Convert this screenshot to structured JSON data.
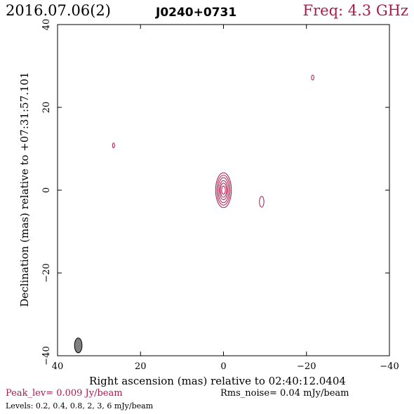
{
  "header": {
    "date": "2016.07.06(2)",
    "source": "J0240+0731",
    "frequency": "Freq: 4.3 GHz"
  },
  "footer": {
    "peak": "Peak_lev=  0.009 Jy/beam",
    "rms": "Rms_noise= 0.04 mJy/beam",
    "levels": "Levels: 0.2, 0.4, 0.8,    2,    3,    6 mJy/beam"
  },
  "colors": {
    "contour": "#b0184a",
    "beam": "#808080",
    "axis": "#000000"
  },
  "chart_data": {
    "type": "contour",
    "xlabel": "Right ascension (mas) relative to 02:40:12.0404",
    "ylabel": "Declination (mas) relative to +07:31:57.101",
    "xlim": [
      40,
      -40
    ],
    "ylim": [
      -40,
      40
    ],
    "x_ticks": [
      40,
      20,
      0,
      -20,
      -40
    ],
    "y_ticks": [
      -40,
      -20,
      0,
      20,
      40
    ],
    "x_tick_labels": [
      "40",
      "20",
      "0",
      "−20",
      "−40"
    ],
    "y_tick_labels": [
      "−40",
      "−20",
      "0",
      "20",
      "40"
    ],
    "contour_levels_mJy": [
      0.2,
      0.4,
      0.8,
      2,
      3,
      6
    ],
    "components": [
      {
        "x": 0,
        "y": 0,
        "semi_major_mas": [
          4.2,
          3.6,
          3.0,
          2.3,
          1.7,
          1.0
        ],
        "semi_minor_mas": [
          1.9,
          1.6,
          1.3,
          1.0,
          0.75,
          0.45
        ]
      },
      {
        "x": -9.2,
        "y": -2.8,
        "semi_major_mas": [
          1.3
        ],
        "semi_minor_mas": [
          0.55
        ]
      },
      {
        "x": 26.5,
        "y": 10.8,
        "semi_major_mas": [
          0.6
        ],
        "semi_minor_mas": [
          0.25
        ]
      },
      {
        "x": -21.5,
        "y": 27.2,
        "semi_major_mas": [
          0.6
        ],
        "semi_minor_mas": [
          0.3
        ]
      }
    ],
    "beam": {
      "x": 35,
      "y": -37.5,
      "semi_major_mas": 1.8,
      "semi_minor_mas": 0.9
    }
  }
}
